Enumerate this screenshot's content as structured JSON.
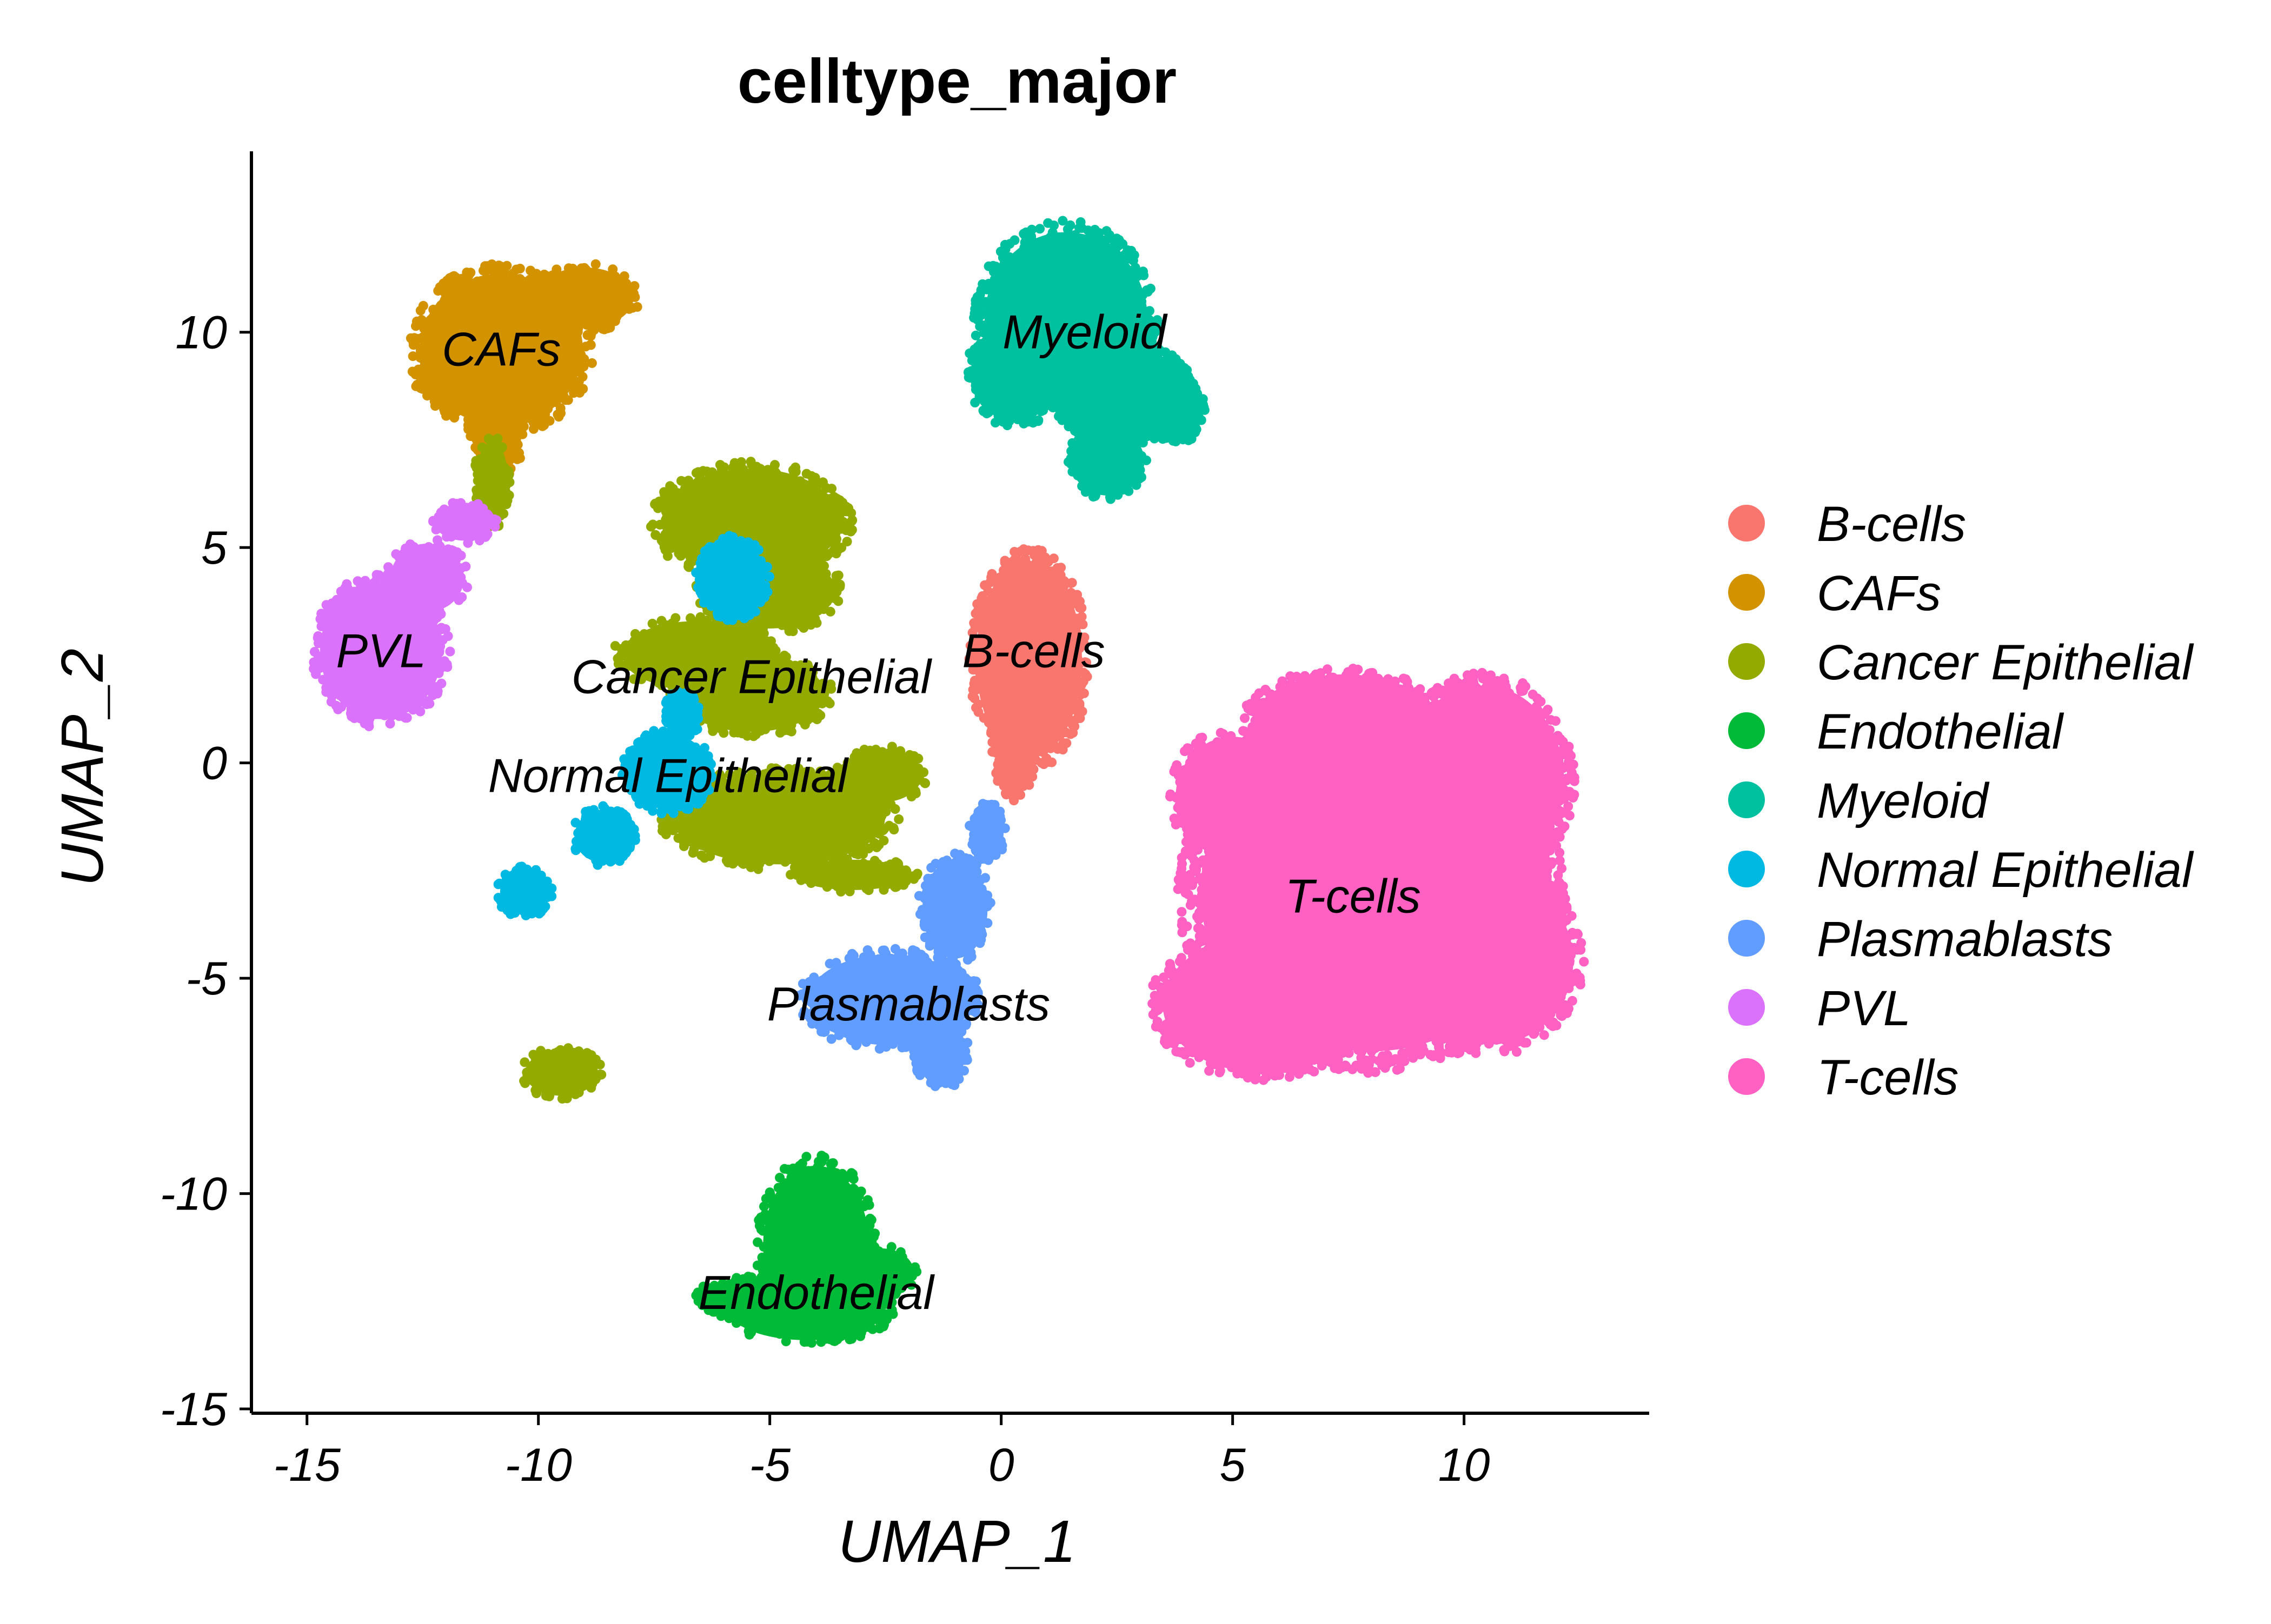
{
  "chart_data": {
    "type": "scatter",
    "title": "celltype_major",
    "xlabel": "UMAP_1",
    "ylabel": "UMAP_2",
    "xlim": [
      -16.2,
      14
    ],
    "ylim": [
      -15.1,
      14.2
    ],
    "x_ticks": [
      -15,
      -10,
      -5,
      0,
      5,
      10
    ],
    "y_ticks": [
      -15,
      -10,
      -5,
      0,
      5,
      10
    ],
    "x_tick_labels": [
      "-15",
      "-10",
      "-5",
      "0",
      "5",
      "10"
    ],
    "y_tick_labels": [
      "-15",
      "-10",
      "-5",
      "0",
      "5",
      "10"
    ],
    "grid": false,
    "legend_position": "right",
    "series": [
      {
        "name": "B-cells",
        "color": "#F8766D",
        "label_at": [
          0.7,
          2.6
        ],
        "regions": [
          [
            0.6,
            2.4,
            1.3,
            2.6
          ],
          [
            0.5,
            4.0,
            0.6,
            0.8
          ],
          [
            0.3,
            0.5,
            0.5,
            1.4
          ]
        ]
      },
      {
        "name": "CAFs",
        "color": "#D39200",
        "label_at": [
          -10.8,
          9.6
        ],
        "regions": [
          [
            -10.8,
            9.6,
            2.0,
            2.0
          ],
          [
            -9.0,
            10.8,
            1.2,
            0.8
          ],
          [
            -10.9,
            7.6,
            0.6,
            1.0
          ],
          [
            -11.3,
            9.0,
            1.4,
            1.0
          ]
        ]
      },
      {
        "name": "Cancer Epithelial",
        "color": "#93AA00",
        "label_at": [
          -5.4,
          2.0
        ],
        "regions": [
          [
            -5.4,
            5.6,
            2.2,
            1.4
          ],
          [
            -5.0,
            4.0,
            1.6,
            1.0
          ],
          [
            -6.6,
            2.5,
            1.8,
            0.9
          ],
          [
            -5.4,
            1.6,
            1.8,
            1.0
          ],
          [
            -4.8,
            -1.3,
            2.6,
            1.2
          ],
          [
            -2.6,
            -0.3,
            1.0,
            0.7
          ],
          [
            -3.2,
            -2.6,
            1.4,
            0.4
          ],
          [
            -9.5,
            -7.2,
            0.9,
            0.6
          ],
          [
            -11.0,
            6.5,
            0.4,
            1.1
          ]
        ]
      },
      {
        "name": "Endothelial",
        "color": "#00BA38",
        "label_at": [
          -4.0,
          -12.3
        ],
        "regions": [
          [
            -4.0,
            -11.2,
            1.3,
            2.1
          ],
          [
            -4.2,
            -12.7,
            1.9,
            0.8
          ],
          [
            -5.5,
            -12.4,
            1.1,
            0.5
          ],
          [
            -2.6,
            -11.8,
            0.8,
            0.6
          ]
        ]
      },
      {
        "name": "Myeloid",
        "color": "#00C19F",
        "label_at": [
          1.8,
          10.0
        ],
        "regions": [
          [
            1.4,
            10.3,
            2.0,
            2.3
          ],
          [
            2.6,
            8.6,
            1.6,
            1.2
          ],
          [
            0.3,
            9.0,
            1.1,
            1.2
          ],
          [
            2.3,
            7.0,
            0.9,
            0.9
          ],
          [
            3.8,
            8.2,
            0.6,
            0.8
          ]
        ]
      },
      {
        "name": "Normal Epithelial",
        "color": "#00B9E3",
        "label_at": [
          -7.2,
          -0.3
        ],
        "regions": [
          [
            -7.2,
            -0.2,
            1.0,
            1.0
          ],
          [
            -10.3,
            -3.0,
            0.6,
            0.6
          ],
          [
            -8.6,
            -1.7,
            0.7,
            0.7
          ],
          [
            -6.9,
            1.1,
            0.4,
            0.6
          ],
          [
            -5.8,
            4.3,
            0.8,
            1.0
          ]
        ]
      },
      {
        "name": "Plasmablasts",
        "color": "#619CFF",
        "label_at": [
          -2.0,
          -5.6
        ],
        "regions": [
          [
            -2.4,
            -5.5,
            2.0,
            1.2
          ],
          [
            -1.0,
            -3.4,
            0.8,
            1.3
          ],
          [
            -1.3,
            -6.7,
            0.6,
            0.9
          ],
          [
            -0.3,
            -1.6,
            0.4,
            0.7
          ]
        ]
      },
      {
        "name": "PVL",
        "color": "#DB72FB",
        "label_at": [
          -13.4,
          2.6
        ],
        "regions": [
          [
            -13.4,
            2.6,
            1.5,
            1.8
          ],
          [
            -12.4,
            4.3,
            0.9,
            0.9
          ],
          [
            -11.6,
            5.6,
            0.7,
            0.5
          ]
        ]
      },
      {
        "name": "T-cells",
        "color": "#FF61C3",
        "label_at": [
          7.6,
          -3.1
        ],
        "regions": [
          [
            8.0,
            -3.0,
            4.2,
            4.2
          ],
          [
            10.4,
            -0.4,
            2.0,
            2.5
          ],
          [
            5.6,
            -5.6,
            2.4,
            1.8
          ],
          [
            10.6,
            -4.6,
            2.0,
            2.2
          ],
          [
            5.0,
            -0.8,
            1.4,
            1.6
          ],
          [
            7.4,
            1.0,
            2.2,
            1.2
          ]
        ]
      }
    ]
  }
}
